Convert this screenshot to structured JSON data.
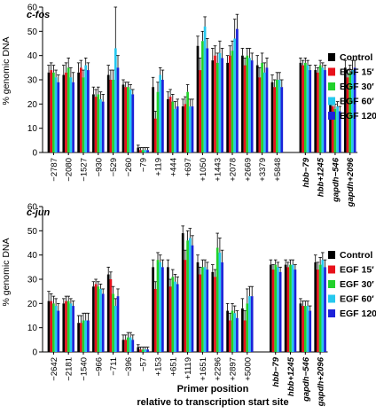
{
  "figure": {
    "xtitle_line1": "Primer position",
    "xtitle_line2": "relative to transcription start site"
  },
  "legend": {
    "items": [
      {
        "label": "Control",
        "color": "#000000"
      },
      {
        "label": "EGF 15′",
        "color": "#e8111b"
      },
      {
        "label": "EGF 30′",
        "color": "#22d12b"
      },
      {
        "label": "EGF 60′",
        "color": "#25c8ee"
      },
      {
        "label": "EGF 120′",
        "color": "#1c22d9"
      }
    ]
  },
  "chart_data": [
    {
      "type": "bar",
      "title": "c-fos",
      "ylabel": "% genomic DNA",
      "ylim": [
        0,
        60
      ],
      "yticks": [
        0,
        10,
        20,
        30,
        40,
        50,
        60
      ],
      "categories": [
        "−2787",
        "−2080",
        "−1527",
        "−930",
        "−529",
        "−260",
        "−79",
        "+119",
        "+444",
        "+697",
        "+1050",
        "+1443",
        "+2078",
        "+2669",
        "+3379",
        "+5848",
        "hbb−79",
        "hbb+1245",
        "gapdh−546",
        "gapdh+2096"
      ],
      "italic_from_index": 16,
      "series": [
        {
          "name": "Control",
          "values": [
            33,
            32,
            33,
            24,
            32,
            28,
            2,
            27,
            22,
            19,
            44,
            38,
            37,
            40,
            36,
            29,
            37,
            34,
            20,
            35
          ],
          "err": [
            3,
            4,
            4,
            3,
            4,
            2,
            1,
            4,
            3,
            3,
            4,
            5,
            3,
            3,
            4,
            3,
            2,
            2,
            2,
            3
          ]
        },
        {
          "name": "EGF 15′",
          "values": [
            34,
            33,
            35,
            23,
            30,
            27,
            1,
            14,
            23,
            20,
            34,
            40,
            40,
            36,
            31,
            27,
            36,
            33,
            19,
            31
          ],
          "err": [
            3,
            4,
            3,
            3,
            4,
            2,
            1,
            3,
            3,
            3,
            5,
            4,
            4,
            3,
            4,
            3,
            2,
            2,
            2,
            3
          ]
        },
        {
          "name": "EGF 30′",
          "values": [
            33,
            35,
            31,
            24,
            30,
            27,
            1,
            25,
            21,
            25,
            46,
            37,
            42,
            40,
            37,
            30,
            37,
            36,
            18,
            33
          ],
          "err": [
            3,
            4,
            3,
            3,
            4,
            2,
            1,
            4,
            3,
            3,
            4,
            4,
            4,
            3,
            4,
            3,
            2,
            2,
            2,
            3
          ]
        },
        {
          "name": "EGF 60′",
          "values": [
            31,
            31,
            36,
            22,
            43,
            26,
            1,
            32,
            18,
            19,
            52,
            41,
            47,
            39,
            33,
            30,
            36,
            35,
            19,
            34
          ],
          "err": [
            3,
            4,
            3,
            3,
            17,
            2,
            1,
            3,
            3,
            3,
            4,
            5,
            8,
            4,
            4,
            3,
            2,
            2,
            2,
            4
          ]
        },
        {
          "name": "EGF 120′",
          "values": [
            29,
            29,
            34,
            21,
            35,
            24,
            1,
            30,
            19,
            19,
            43,
            39,
            51,
            38,
            35,
            27,
            34,
            34,
            17,
            35
          ],
          "err": [
            3,
            4,
            3,
            3,
            5,
            2,
            1,
            4,
            3,
            3,
            4,
            4,
            6,
            3,
            4,
            3,
            2,
            2,
            2,
            3
          ]
        }
      ]
    },
    {
      "type": "bar",
      "title": "c-jun",
      "ylabel": "% genomic DNA",
      "ylim": [
        0,
        60
      ],
      "yticks": [
        0,
        10,
        20,
        30,
        40,
        50,
        60
      ],
      "categories": [
        "−2642",
        "−2181",
        "−1540",
        "−966",
        "−711",
        "−396",
        "−57",
        "+153",
        "+651",
        "+1119",
        "+1651",
        "+2296",
        "+2897",
        "+5000",
        "hbb−79",
        "hbb+1245",
        "gapdh−546",
        "gapdh+2096"
      ],
      "italic_from_index": 14,
      "series": [
        {
          "name": "Control",
          "values": [
            21,
            20,
            12,
            27,
            32,
            5,
            2,
            35,
            35,
            49,
            37,
            33,
            17,
            18,
            36,
            36,
            20,
            37
          ],
          "err": [
            4,
            2,
            3,
            2,
            3,
            2,
            1,
            3,
            3,
            3,
            3,
            3,
            3,
            4,
            2,
            2,
            2,
            3
          ]
        },
        {
          "name": "EGF 15′",
          "values": [
            21,
            21,
            12,
            28,
            30,
            5,
            1,
            26,
            27,
            38,
            32,
            31,
            13,
            13,
            34,
            35,
            19,
            34
          ],
          "err": [
            3,
            2,
            3,
            2,
            3,
            2,
            1,
            3,
            3,
            4,
            3,
            3,
            3,
            4,
            2,
            2,
            2,
            3
          ]
        },
        {
          "name": "EGF 30′",
          "values": [
            20,
            21,
            13,
            27,
            24,
            6,
            1,
            38,
            31,
            46,
            35,
            43,
            17,
            20,
            36,
            36,
            19,
            36
          ],
          "err": [
            3,
            2,
            3,
            2,
            3,
            2,
            1,
            3,
            3,
            4,
            3,
            6,
            3,
            6,
            2,
            2,
            2,
            3
          ]
        },
        {
          "name": "EGF 60′",
          "values": [
            19,
            20,
            13,
            26,
            19,
            6,
            1,
            37,
            29,
            47,
            35,
            41,
            16,
            23,
            35,
            36,
            19,
            38
          ],
          "err": [
            3,
            2,
            3,
            2,
            3,
            2,
            1,
            3,
            3,
            4,
            3,
            6,
            3,
            4,
            2,
            2,
            2,
            3
          ]
        },
        {
          "name": "EGF 120′",
          "values": [
            17,
            19,
            13,
            24,
            23,
            5,
            1,
            35,
            28,
            44,
            34,
            37,
            14,
            23,
            33,
            34,
            17,
            35
          ],
          "err": [
            3,
            2,
            3,
            2,
            3,
            2,
            1,
            3,
            3,
            4,
            3,
            5,
            3,
            4,
            2,
            2,
            2,
            3
          ]
        }
      ]
    }
  ]
}
